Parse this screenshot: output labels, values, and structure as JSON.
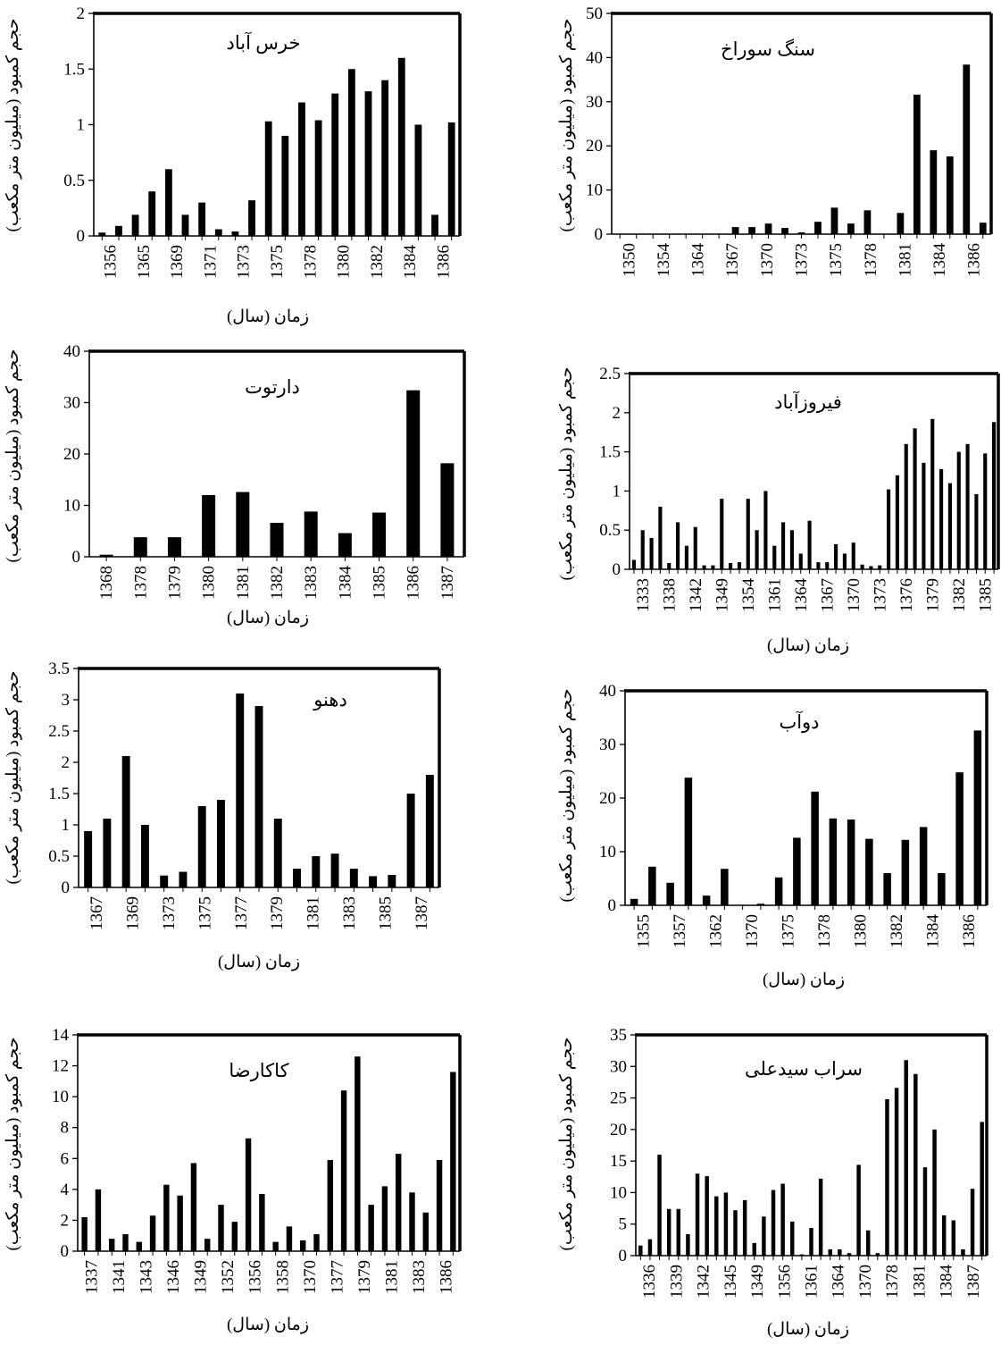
{
  "chart_data": [
    {
      "type": "bar",
      "title": "خرس آباد",
      "xlabel": "زمان (سال)",
      "ylabel": "حجم کمبود (میلیون متر مکعب)",
      "ylim": [
        0,
        2
      ],
      "yticks": [
        "0",
        "0.5",
        "1",
        "1.5",
        "2"
      ],
      "xtick_labels": [
        "1356",
        "1365",
        "1369",
        "1371",
        "1373",
        "1375",
        "1378",
        "1380",
        "1382",
        "1384",
        "1386"
      ],
      "values": [
        0.03,
        0.09,
        0.19,
        0.4,
        0.6,
        0.19,
        0.3,
        0.06,
        0.04,
        0.32,
        1.03,
        0.9,
        1.2,
        1.04,
        1.28,
        1.5,
        1.3,
        1.4,
        1.6,
        1.0,
        0.19,
        1.02
      ]
    },
    {
      "type": "bar",
      "title": "سنگ سوراخ",
      "xlabel": "",
      "ylabel": "حجم کمبود (میلیون متر مکعب)",
      "ylim": [
        0,
        50
      ],
      "yticks": [
        "0",
        "10",
        "20",
        "30",
        "40",
        "50"
      ],
      "xtick_labels": [
        "1350",
        "1354",
        "1364",
        "1367",
        "1370",
        "1373",
        "1375",
        "1378",
        "1381",
        "1384",
        "1386"
      ],
      "values": [
        0,
        0,
        0,
        0,
        0,
        0,
        0,
        1.6,
        1.6,
        2.4,
        1.4,
        0.4,
        2.8,
        6.0,
        2.4,
        5.4,
        0,
        4.8,
        31.6,
        19.0,
        17.6,
        38.4,
        2.6
      ]
    },
    {
      "type": "bar",
      "title": "دارتوت",
      "xlabel": "زمان (سال)",
      "ylabel": "حجم کمبود (میلیون متر مکعب)",
      "ylim": [
        0,
        40
      ],
      "yticks": [
        "0",
        "10",
        "20",
        "30",
        "40"
      ],
      "xtick_labels": [
        "1368",
        "1378",
        "1379",
        "1380",
        "1381",
        "1382",
        "1383",
        "1384",
        "1385",
        "1386",
        "1387"
      ],
      "values": [
        0.4,
        3.8,
        3.8,
        12.0,
        12.6,
        6.6,
        8.8,
        4.6,
        8.6,
        32.4,
        18.2
      ]
    },
    {
      "type": "bar",
      "title": "فیروزآباد",
      "xlabel": "زمان (سال)",
      "ylabel": "حجم کمبود (میلیون متر مکعب)",
      "ylim": [
        0,
        2.5
      ],
      "yticks": [
        "0",
        "0.5",
        "1",
        "1.5",
        "2",
        "2.5"
      ],
      "xtick_labels": [
        "1333",
        "1338",
        "1342",
        "1349",
        "1354",
        "1361",
        "1364",
        "1367",
        "1370",
        "1373",
        "1376",
        "1379",
        "1382",
        "1385"
      ],
      "values": [
        0.12,
        0.5,
        0.4,
        0.8,
        0.08,
        0.6,
        0.3,
        0.54,
        0.05,
        0.05,
        0.9,
        0.08,
        0.09,
        0.9,
        0.5,
        1.0,
        0.3,
        0.6,
        0.5,
        0.2,
        0.62,
        0.09,
        0.09,
        0.32,
        0.2,
        0.34,
        0.06,
        0.04,
        0.05,
        1.02,
        1.2,
        1.6,
        1.8,
        1.36,
        1.92,
        1.28,
        1.1,
        1.5,
        1.6,
        0.96,
        1.48,
        1.88
      ]
    },
    {
      "type": "bar",
      "title": "دهنو",
      "xlabel": "زمان (سال)",
      "ylabel": "حجم کمبود (میلیون متر مکعب)",
      "ylim": [
        0,
        3.5
      ],
      "yticks": [
        "0",
        "0.5",
        "1",
        "1.5",
        "2",
        "2.5",
        "3",
        "3.5"
      ],
      "xtick_labels": [
        "1367",
        "1369",
        "1373",
        "1375",
        "1377",
        "1379",
        "1381",
        "1383",
        "1385",
        "1387"
      ],
      "values": [
        0.9,
        1.1,
        2.1,
        1.0,
        0.19,
        0.25,
        1.3,
        1.4,
        3.1,
        2.9,
        1.1,
        0.3,
        0.5,
        0.54,
        0.3,
        0.18,
        0.2,
        1.5,
        1.8
      ]
    },
    {
      "type": "bar",
      "title": "دوآب",
      "xlabel": "زمان (سال)",
      "ylabel": "حجم کمبود (میلیون متر مکعب)",
      "ylim": [
        0,
        40
      ],
      "yticks": [
        "0",
        "10",
        "20",
        "30",
        "40"
      ],
      "xtick_labels": [
        "1355",
        "1357",
        "1362",
        "1370",
        "1375",
        "1378",
        "1380",
        "1382",
        "1384",
        "1386"
      ],
      "values": [
        1.2,
        7.2,
        4.2,
        23.8,
        1.8,
        6.8,
        0,
        0.3,
        5.2,
        12.6,
        21.2,
        16.2,
        16.0,
        12.4,
        6.0,
        12.2,
        14.6,
        6.0,
        24.8,
        32.6
      ]
    },
    {
      "type": "bar",
      "title": "کاکارضا",
      "xlabel": "زمان (سال)",
      "ylabel": "حجم کمبود (میلیون متر مکعب)",
      "ylim": [
        0,
        14
      ],
      "yticks": [
        "0",
        "2",
        "4",
        "6",
        "8",
        "10",
        "12",
        "14"
      ],
      "xtick_labels": [
        "1337",
        "1341",
        "1343",
        "1346",
        "1349",
        "1352",
        "1356",
        "1358",
        "1370",
        "1377",
        "1379",
        "1381",
        "1383",
        "1386"
      ],
      "values": [
        2.2,
        4.0,
        0.8,
        1.1,
        0.6,
        2.3,
        4.3,
        3.6,
        5.7,
        0.8,
        3.0,
        1.9,
        7.3,
        3.7,
        0.6,
        1.6,
        0.7,
        1.1,
        5.9,
        10.4,
        12.6,
        3.0,
        4.2,
        6.3,
        3.8,
        2.5,
        5.9,
        11.6
      ]
    },
    {
      "type": "bar",
      "title": "سراب سیدعلی",
      "xlabel": "زمان (سال)",
      "ylabel": "حجم کمبود (میلیون متر مکعب)",
      "ylim": [
        0,
        35
      ],
      "yticks": [
        "0",
        "5",
        "10",
        "15",
        "20",
        "25",
        "30",
        "35"
      ],
      "xtick_labels": [
        "1336",
        "1339",
        "1342",
        "1345",
        "1349",
        "1356",
        "1361",
        "1364",
        "1370",
        "1378",
        "1381",
        "1384",
        "1387"
      ],
      "values": [
        1.6,
        2.6,
        16.0,
        7.4,
        7.4,
        3.4,
        13.0,
        12.6,
        9.4,
        10.0,
        7.2,
        8.8,
        2.0,
        6.2,
        10.4,
        11.4,
        5.4,
        0.2,
        4.4,
        12.2,
        1.0,
        1.0,
        0.4,
        14.4,
        4.0,
        0.4,
        24.8,
        26.6,
        31.0,
        28.8,
        14.0,
        20.0,
        6.4,
        5.6,
        1.0,
        10.6,
        21.2
      ]
    }
  ]
}
